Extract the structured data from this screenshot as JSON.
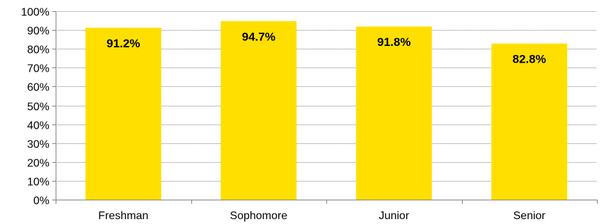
{
  "chart_data": {
    "type": "bar",
    "categories": [
      "Freshman",
      "Sophomore",
      "Junior",
      "Senior"
    ],
    "values": [
      91.2,
      94.7,
      91.8,
      82.8
    ],
    "data_labels": [
      "91.2%",
      "94.7%",
      "91.8%",
      "82.8%"
    ],
    "yticks": [
      "0%",
      "10%",
      "20%",
      "30%",
      "40%",
      "50%",
      "60%",
      "70%",
      "80%",
      "90%",
      "100%"
    ],
    "ylim": [
      0,
      100
    ],
    "grid": true,
    "legend": "none",
    "bar_color": "#FFDF00",
    "grid_color": "#808080",
    "axis_color": "#808080"
  }
}
